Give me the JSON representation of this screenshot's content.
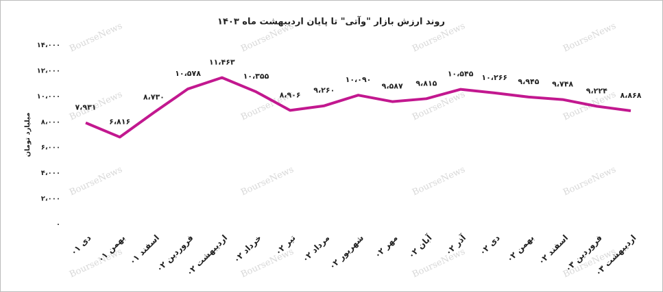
{
  "chart_data": {
    "type": "line",
    "title": "روند ارزش بازار \"وآتی\" تا پایان اردیبهشت ماه ۱۴۰۳",
    "y_label": "میلیارد تومان",
    "watermark": "BourseNews",
    "categories": [
      "دی ۰۱",
      "بهمن ۰۱",
      "اسفند ۰۱",
      "فروردین ۰۲",
      "اردیبهشت ۰۲",
      "خرداد ۰۲",
      "تیر ۰۲",
      "مرداد ۰۲",
      "شهریور ۰۲",
      "مهر ۰۲",
      "آبان ۰۲",
      "آذر ۰۲",
      "دی ۰۲",
      "بهمن ۰۲",
      "اسفند ۰۲",
      "فروردین ۰۳",
      "اردیبهشت ۰۳"
    ],
    "values": [
      7931,
      6816,
      8730,
      10578,
      11463,
      10355,
      8906,
      9260,
      10090,
      9587,
      9815,
      10545,
      10266,
      9945,
      9748,
      9224,
      8868
    ],
    "value_labels": [
      "۷،۹۳۱",
      "۶،۸۱۶",
      "۸،۷۳۰",
      "۱۰،۵۷۸",
      "۱۱،۴۶۳",
      "۱۰،۳۵۵",
      "۸،۹۰۶",
      "۹،۲۶۰",
      "۱۰،۰۹۰",
      "۹،۵۸۷",
      "۹،۸۱۵",
      "۱۰،۵۴۵",
      "۱۰،۲۶۶",
      "۹،۹۴۵",
      "۹،۷۴۸",
      "۹،۲۲۴",
      "۸،۸۶۸"
    ],
    "color": "#c2188f",
    "ylim": [
      0,
      14000
    ],
    "yticks": [
      {
        "value": 0,
        "label": "۰"
      },
      {
        "value": 2000,
        "label": "۲،۰۰۰"
      },
      {
        "value": 4000,
        "label": "۴،۰۰۰"
      },
      {
        "value": 6000,
        "label": "۶،۰۰۰"
      },
      {
        "value": 8000,
        "label": "۸،۰۰۰"
      },
      {
        "value": 10000,
        "label": "۱۰،۰۰۰"
      },
      {
        "value": 12000,
        "label": "۱۲،۰۰۰"
      },
      {
        "value": 14000,
        "label": "۱۴،۰۰۰"
      }
    ],
    "grid": false
  }
}
